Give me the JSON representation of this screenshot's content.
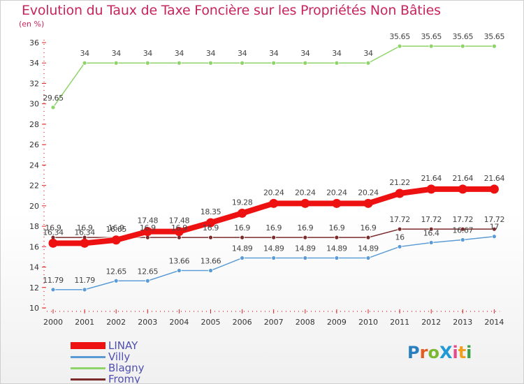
{
  "title": "Evolution du Taux de Taxe Foncière sur les Propriétés Non Bâties",
  "unit_label": "(en %)",
  "chart_data": {
    "type": "line",
    "categories": [
      "2000",
      "2001",
      "2002",
      "2003",
      "2004",
      "2005",
      "2006",
      "2007",
      "2008",
      "2009",
      "2010",
      "2011",
      "2012",
      "2013",
      "2014"
    ],
    "ylim": [
      10,
      36
    ],
    "yticks": [
      10,
      12,
      14,
      16,
      18,
      20,
      22,
      24,
      26,
      28,
      30,
      32,
      34,
      36
    ],
    "series": [
      {
        "name": "LINAY",
        "color": "#ee1111",
        "values": [
          16.34,
          16.34,
          16.65,
          17.48,
          17.48,
          18.35,
          19.28,
          20.24,
          20.24,
          20.24,
          20.24,
          21.22,
          21.64,
          21.64,
          21.64
        ],
        "labels": [
          "16.34",
          "16.34",
          "16.65",
          "17.48",
          "17.48",
          "18.35",
          "19.28",
          "20.24",
          "20.24",
          "20.24",
          "20.24",
          "21.22",
          "21.64",
          "21.64",
          "21.64"
        ]
      },
      {
        "name": "Villy",
        "color": "#5b9bd5",
        "values": [
          11.79,
          11.79,
          12.65,
          12.65,
          13.66,
          13.66,
          14.89,
          14.89,
          14.89,
          14.89,
          14.89,
          16,
          16.4,
          16.67,
          17
        ],
        "labels": [
          "11.79",
          "11.79",
          "12.65",
          "12.65",
          "13.66",
          "13.66",
          "14.89",
          "14.89",
          "14.89",
          "14.89",
          "14.89",
          "16",
          "16.4",
          "16.67",
          "17"
        ]
      },
      {
        "name": "Blagny",
        "color": "#8fd46a",
        "values": [
          29.65,
          34,
          34,
          34,
          34,
          34,
          34,
          34,
          34,
          34,
          34,
          35.65,
          35.65,
          35.65,
          35.65
        ],
        "labels": [
          "29.65",
          "34",
          "34",
          "34",
          "34",
          "34",
          "34",
          "34",
          "34",
          "34",
          "34",
          "35.65",
          "35.65",
          "35.65",
          "35.65"
        ]
      },
      {
        "name": "Fromy",
        "color": "#7a2a2a",
        "values": [
          16.9,
          16.9,
          16.9,
          16.9,
          16.9,
          16.9,
          16.9,
          16.9,
          16.9,
          16.9,
          16.9,
          17.72,
          17.72,
          17.72,
          17.72
        ],
        "labels": [
          "16.9",
          "16.9",
          "16.9",
          "16.9",
          "16.9",
          "16.9",
          "16.9",
          "16.9",
          "16.9",
          "16.9",
          "16.9",
          "17.72",
          "17.72",
          "17.72",
          "17.72"
        ]
      }
    ],
    "grid": false,
    "legend_position": "bottom-left"
  },
  "logo": {
    "text": "ProXiti",
    "colors": [
      "#2a7fc1",
      "#e35b1e",
      "#7bb833",
      "#1f9ad6",
      "#e34a8f",
      "#f0a020",
      "#3ca04a"
    ]
  }
}
